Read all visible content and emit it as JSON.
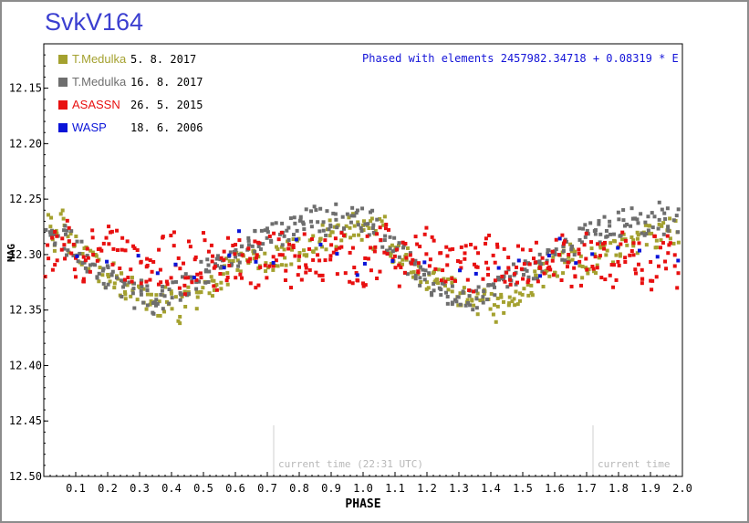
{
  "title": "SvkV164",
  "chart_data": {
    "type": "scatter",
    "title": "SvkV164",
    "xlabel": "PHASE",
    "ylabel": "MAG",
    "xlim": [
      0,
      2.0
    ],
    "ylim": [
      12.5,
      12.11
    ],
    "y_inverted": true,
    "grid": false,
    "legend_position": "top-left",
    "elements_text": "Phased with elements 2457982.34718 + 0.08319 * E",
    "x_ticks": [
      "0.1",
      "0.2",
      "0.3",
      "0.4",
      "0.5",
      "0.6",
      "0.7",
      "0.8",
      "0.9",
      "1.0",
      "1.1",
      "1.2",
      "1.3",
      "1.4",
      "1.5",
      "1.6",
      "1.7",
      "1.8",
      "1.9",
      "2.0"
    ],
    "y_ticks": [
      "12.15",
      "12.20",
      "12.25",
      "12.30",
      "12.35",
      "12.40",
      "12.45",
      "12.50"
    ],
    "current_time_markers": [
      {
        "x": 0.72,
        "label": "current time (22:31 UTC)"
      },
      {
        "x": 1.72,
        "label": "current time"
      }
    ],
    "series": [
      {
        "name": "T.Medulka",
        "date": "5. 8. 2017",
        "color": "#a4a12f",
        "phase_points": [
          [
            0.0,
            12.28
          ],
          [
            0.02,
            12.275
          ],
          [
            0.04,
            12.285
          ],
          [
            0.06,
            12.27
          ],
          [
            0.08,
            12.29
          ],
          [
            0.1,
            12.295
          ],
          [
            0.12,
            12.3
          ],
          [
            0.14,
            12.305
          ],
          [
            0.16,
            12.31
          ],
          [
            0.18,
            12.315
          ],
          [
            0.2,
            12.32
          ],
          [
            0.22,
            12.318
          ],
          [
            0.24,
            12.325
          ],
          [
            0.26,
            12.33
          ],
          [
            0.28,
            12.332
          ],
          [
            0.3,
            12.335
          ],
          [
            0.32,
            12.338
          ],
          [
            0.34,
            12.34
          ],
          [
            0.36,
            12.345
          ],
          [
            0.38,
            12.34
          ],
          [
            0.4,
            12.345
          ],
          [
            0.42,
            12.35
          ],
          [
            0.44,
            12.342
          ],
          [
            0.46,
            12.338
          ],
          [
            0.48,
            12.34
          ],
          [
            0.5,
            12.335
          ],
          [
            0.52,
            12.33
          ],
          [
            0.54,
            12.325
          ],
          [
            0.56,
            12.32
          ],
          [
            0.58,
            12.315
          ],
          [
            0.6,
            12.31
          ],
          [
            0.62,
            12.305
          ],
          [
            0.64,
            12.3
          ],
          [
            0.66,
            12.305
          ],
          [
            0.68,
            12.31
          ],
          [
            0.7,
            12.308
          ],
          [
            0.72,
            12.305
          ],
          [
            0.74,
            12.302
          ],
          [
            0.76,
            12.3
          ],
          [
            0.78,
            12.298
          ],
          [
            0.8,
            12.295
          ],
          [
            0.82,
            12.29
          ],
          [
            0.84,
            12.292
          ],
          [
            0.86,
            12.288
          ],
          [
            0.88,
            12.285
          ],
          [
            0.9,
            12.28
          ],
          [
            0.92,
            12.282
          ],
          [
            0.94,
            12.278
          ],
          [
            0.96,
            12.275
          ],
          [
            0.98,
            12.28
          ]
        ]
      },
      {
        "name": "T.Medulka",
        "date": "16. 8. 2017",
        "color": "#6e6e6e",
        "phase_points": [
          [
            0.0,
            12.27
          ],
          [
            0.02,
            12.272
          ],
          [
            0.04,
            12.28
          ],
          [
            0.06,
            12.285
          ],
          [
            0.08,
            12.29
          ],
          [
            0.1,
            12.295
          ],
          [
            0.12,
            12.3
          ],
          [
            0.14,
            12.308
          ],
          [
            0.16,
            12.315
          ],
          [
            0.18,
            12.32
          ],
          [
            0.2,
            12.322
          ],
          [
            0.22,
            12.326
          ],
          [
            0.24,
            12.33
          ],
          [
            0.26,
            12.334
          ],
          [
            0.28,
            12.338
          ],
          [
            0.3,
            12.335
          ],
          [
            0.32,
            12.34
          ],
          [
            0.34,
            12.342
          ],
          [
            0.36,
            12.338
          ],
          [
            0.38,
            12.34
          ],
          [
            0.4,
            12.335
          ],
          [
            0.42,
            12.33
          ],
          [
            0.44,
            12.328
          ],
          [
            0.46,
            12.325
          ],
          [
            0.48,
            12.32
          ],
          [
            0.5,
            12.318
          ],
          [
            0.52,
            12.315
          ],
          [
            0.54,
            12.31
          ],
          [
            0.56,
            12.308
          ],
          [
            0.58,
            12.305
          ],
          [
            0.6,
            12.3
          ],
          [
            0.62,
            12.298
          ],
          [
            0.64,
            12.295
          ],
          [
            0.66,
            12.29
          ],
          [
            0.68,
            12.288
          ],
          [
            0.7,
            12.285
          ],
          [
            0.72,
            12.282
          ],
          [
            0.74,
            12.28
          ],
          [
            0.76,
            12.278
          ],
          [
            0.78,
            12.275
          ],
          [
            0.8,
            12.272
          ],
          [
            0.82,
            12.27
          ],
          [
            0.84,
            12.268
          ],
          [
            0.86,
            12.27
          ],
          [
            0.88,
            12.272
          ],
          [
            0.9,
            12.268
          ],
          [
            0.92,
            12.265
          ],
          [
            0.94,
            12.27
          ],
          [
            0.96,
            12.268
          ],
          [
            0.98,
            12.27
          ]
        ]
      },
      {
        "name": "ASASSN",
        "date": "26. 5. 2015",
        "color": "#e81010",
        "phase_points": [
          [
            0.0,
            12.31
          ],
          [
            0.02,
            12.305
          ],
          [
            0.04,
            12.3
          ],
          [
            0.06,
            12.295
          ],
          [
            0.08,
            12.29
          ],
          [
            0.1,
            12.3
          ],
          [
            0.12,
            12.31
          ],
          [
            0.14,
            12.305
          ],
          [
            0.16,
            12.3
          ],
          [
            0.18,
            12.298
          ],
          [
            0.2,
            12.295
          ],
          [
            0.22,
            12.3
          ],
          [
            0.24,
            12.305
          ],
          [
            0.26,
            12.31
          ],
          [
            0.28,
            12.308
          ],
          [
            0.3,
            12.305
          ],
          [
            0.32,
            12.31
          ],
          [
            0.34,
            12.312
          ],
          [
            0.36,
            12.31
          ],
          [
            0.38,
            12.305
          ],
          [
            0.4,
            12.3
          ],
          [
            0.42,
            12.31
          ],
          [
            0.44,
            12.315
          ],
          [
            0.46,
            12.31
          ],
          [
            0.48,
            12.305
          ],
          [
            0.5,
            12.3
          ],
          [
            0.52,
            12.305
          ],
          [
            0.54,
            12.31
          ],
          [
            0.56,
            12.308
          ],
          [
            0.58,
            12.305
          ],
          [
            0.6,
            12.3
          ],
          [
            0.62,
            12.302
          ],
          [
            0.64,
            12.305
          ],
          [
            0.66,
            12.31
          ],
          [
            0.68,
            12.308
          ],
          [
            0.7,
            12.3
          ],
          [
            0.72,
            12.298
          ],
          [
            0.74,
            12.3
          ],
          [
            0.76,
            12.305
          ],
          [
            0.78,
            12.31
          ],
          [
            0.8,
            12.305
          ],
          [
            0.82,
            12.3
          ],
          [
            0.84,
            12.298
          ],
          [
            0.86,
            12.3
          ],
          [
            0.88,
            12.305
          ],
          [
            0.9,
            12.31
          ],
          [
            0.92,
            12.305
          ],
          [
            0.94,
            12.3
          ],
          [
            0.96,
            12.305
          ],
          [
            0.98,
            12.31
          ]
        ]
      },
      {
        "name": "WASP",
        "date": "18. 6. 2006",
        "color": "#0a14d8",
        "phase_points": [
          [
            0.0,
            12.31
          ],
          [
            0.1,
            12.3
          ],
          [
            0.2,
            12.305
          ],
          [
            0.3,
            12.31
          ],
          [
            0.36,
            12.328
          ],
          [
            0.42,
            12.318
          ],
          [
            0.48,
            12.312
          ],
          [
            0.56,
            12.31
          ],
          [
            0.58,
            12.305
          ],
          [
            0.62,
            12.28
          ],
          [
            0.66,
            12.298
          ],
          [
            0.72,
            12.3
          ],
          [
            0.8,
            12.285
          ],
          [
            0.86,
            12.29
          ],
          [
            0.92,
            12.305
          ],
          [
            0.98,
            12.31
          ]
        ]
      }
    ]
  }
}
